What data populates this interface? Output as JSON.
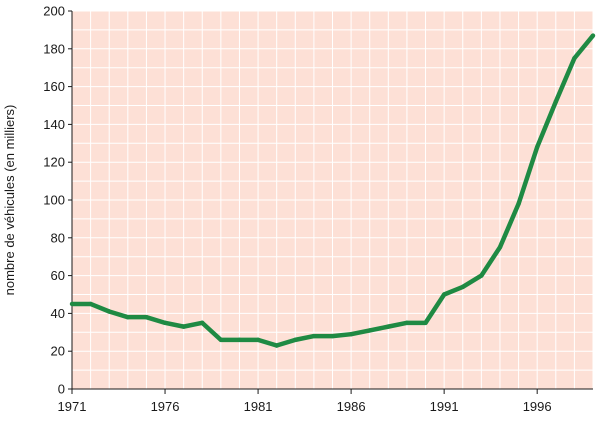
{
  "chart_data": {
    "type": "line",
    "title": "",
    "xlabel": "",
    "ylabel": "nombre de véhicules (en milliers)",
    "xlim": [
      1971,
      1999
    ],
    "ylim": [
      0,
      200
    ],
    "x_ticks": [
      1971,
      1976,
      1981,
      1986,
      1991,
      1996
    ],
    "y_ticks": [
      0,
      20,
      40,
      60,
      80,
      100,
      120,
      140,
      160,
      180,
      200
    ],
    "grid": true,
    "colors": {
      "plot_background": "#fde0d6",
      "gridline": "#ffffff",
      "line": "#1f8a43"
    },
    "series": [
      {
        "name": "",
        "x": [
          1971,
          1972,
          1973,
          1974,
          1975,
          1976,
          1977,
          1978,
          1979,
          1980,
          1981,
          1982,
          1983,
          1984,
          1985,
          1986,
          1987,
          1988,
          1989,
          1990,
          1991,
          1992,
          1993,
          1994,
          1995,
          1996,
          1997,
          1998,
          1999
        ],
        "values": [
          45,
          45,
          41,
          38,
          38,
          35,
          33,
          35,
          26,
          26,
          26,
          23,
          26,
          28,
          28,
          29,
          31,
          33,
          35,
          35,
          50,
          54,
          60,
          75,
          98,
          128,
          152,
          175,
          187
        ]
      }
    ]
  }
}
